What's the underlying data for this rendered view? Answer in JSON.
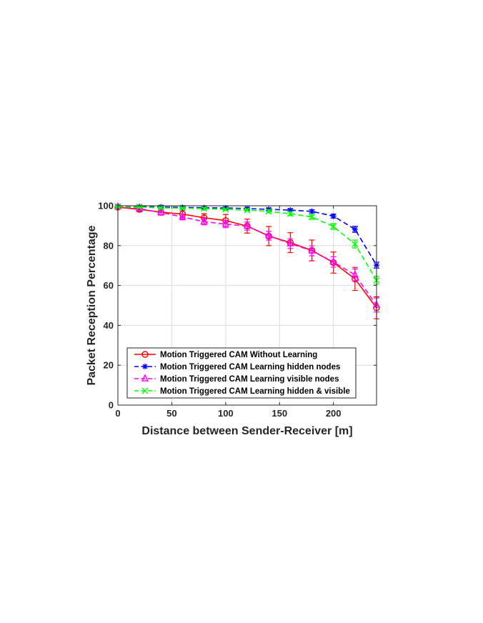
{
  "chart_data": {
    "type": "line",
    "xlabel": "Distance between Sender-Receiver [m]",
    "ylabel": "Packet Reception Percentage",
    "xlim": [
      0,
      240
    ],
    "ylim": [
      0,
      100
    ],
    "xticks": [
      0,
      50,
      100,
      150,
      200
    ],
    "yticks": [
      0,
      20,
      40,
      60,
      80,
      100
    ],
    "grid": true,
    "legend_position": "bottom-left",
    "x": [
      0,
      20,
      40,
      60,
      80,
      100,
      120,
      140,
      160,
      180,
      200,
      220,
      240
    ],
    "series": [
      {
        "name": "Motion Triggered CAM Without Learning",
        "color": "#ff0000",
        "line_style": "solid",
        "marker": "circle",
        "values": [
          99.3,
          98.2,
          96.8,
          95.8,
          94.0,
          92.6,
          89.8,
          84.8,
          81.5,
          77.6,
          71.5,
          63.3,
          48.8
        ],
        "error": [
          0.5,
          1.2,
          1.5,
          1.8,
          2.0,
          3.0,
          3.5,
          4.8,
          5.0,
          5.2,
          5.3,
          5.8,
          5.5
        ]
      },
      {
        "name": "Motion Triggered CAM Learning hidden nodes",
        "color": "#0000ff",
        "line_style": "dashed",
        "marker": "asterisk",
        "values": [
          99.8,
          99.6,
          99.4,
          99.2,
          99.0,
          98.9,
          98.6,
          98.2,
          97.8,
          97.2,
          94.8,
          88.2,
          70.2
        ],
        "error": [
          0.2,
          0.3,
          0.3,
          0.3,
          0.4,
          0.4,
          0.5,
          0.6,
          0.6,
          0.8,
          1.0,
          1.5,
          1.5
        ]
      },
      {
        "name": "Motion Triggered CAM Learning visible nodes",
        "color": "#ff00ff",
        "line_style": "dashed",
        "marker": "triangle",
        "values": [
          99.5,
          98.6,
          96.6,
          94.4,
          92.0,
          90.8,
          89.8,
          85.0,
          81.0,
          77.4,
          71.8,
          65.3,
          50.2
        ],
        "error": [
          0.4,
          0.8,
          1.2,
          1.5,
          1.6,
          1.8,
          2.0,
          2.2,
          2.4,
          2.5,
          2.6,
          3.0,
          3.5
        ]
      },
      {
        "name": "Motion Triggered CAM Learning hidden & visible",
        "color": "#00ff00",
        "line_style": "dashed",
        "marker": "cross",
        "values": [
          99.6,
          99.4,
          99.0,
          98.8,
          98.6,
          98.2,
          97.8,
          97.2,
          96.0,
          94.4,
          89.6,
          80.8,
          62.6
        ],
        "error": [
          0.2,
          0.3,
          0.4,
          0.4,
          0.5,
          0.5,
          0.6,
          0.8,
          1.0,
          1.2,
          1.5,
          2.0,
          2.0
        ]
      }
    ]
  }
}
